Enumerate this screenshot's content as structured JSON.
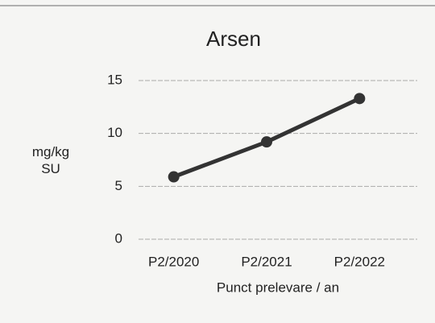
{
  "chart_data": {
    "type": "line",
    "title": "Arsen",
    "ylabel": "mg/kg SU",
    "xlabel": "Punct prelevare / an",
    "categories": [
      "P2/2020",
      "P2/2021",
      "P2/2022"
    ],
    "series": [
      {
        "name": "Arsen",
        "color": "#333333",
        "values": [
          5.9,
          9.2,
          13.3
        ]
      }
    ],
    "ylim": [
      0,
      15
    ],
    "yticks": [
      0,
      5,
      10,
      15
    ],
    "grid": true
  }
}
